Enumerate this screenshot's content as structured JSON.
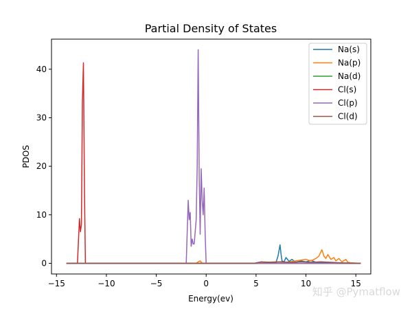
{
  "chart_data": {
    "type": "line",
    "title": "Partial Density of States",
    "xlabel": "Energy(ev)",
    "ylabel": "PDOS",
    "xlim": [
      -15.5,
      16.5
    ],
    "ylim": [
      -2.2,
      46.2
    ],
    "xticks": [
      -15,
      -10,
      -5,
      0,
      5,
      10,
      15
    ],
    "xtick_labels": [
      "−15",
      "−10",
      "−5",
      "0",
      "5",
      "10",
      "15"
    ],
    "yticks": [
      0,
      10,
      20,
      30,
      40
    ],
    "ytick_labels": [
      "0",
      "10",
      "20",
      "30",
      "40"
    ],
    "grid": false,
    "legend_position": "top-right",
    "series": [
      {
        "name": "Na(s)",
        "color": "#1f77b4",
        "x": [
          -14,
          5,
          7.0,
          7.2,
          7.4,
          7.5,
          7.6,
          7.8,
          8.0,
          8.3,
          8.6,
          9.0,
          9.5,
          10.0,
          10.5,
          11.0,
          12.0,
          13.0,
          15.5
        ],
        "y": [
          0,
          0,
          0.2,
          1.5,
          3.8,
          2.0,
          0.5,
          0.3,
          1.2,
          0.4,
          0.8,
          0.2,
          0.5,
          0.3,
          0.6,
          0.2,
          0.1,
          0,
          0
        ]
      },
      {
        "name": "Na(p)",
        "color": "#ff7f0e",
        "x": [
          -14,
          -1.0,
          -0.8,
          -0.6,
          -0.4,
          5,
          6,
          7,
          8,
          9,
          10,
          10.5,
          11.0,
          11.3,
          11.6,
          11.8,
          12.0,
          12.2,
          12.5,
          12.8,
          13.0,
          13.3,
          13.6,
          14.0,
          14.2,
          14.5,
          15.5
        ],
        "y": [
          0,
          0,
          0.3,
          0.5,
          0,
          0,
          0.2,
          0.3,
          0.2,
          0.5,
          0.8,
          0.5,
          1.0,
          1.5,
          2.8,
          1.5,
          1.0,
          1.8,
          0.8,
          1.2,
          0.5,
          1.0,
          0.3,
          0.8,
          0.2,
          0.1,
          0
        ]
      },
      {
        "name": "Na(d)",
        "color": "#2ca02c",
        "x": [
          -14,
          15.5
        ],
        "y": [
          0,
          0
        ]
      },
      {
        "name": "Cl(s)",
        "color": "#d62728",
        "x": [
          -14,
          -12.9,
          -12.7,
          -12.6,
          -12.5,
          -12.4,
          -12.3,
          -12.2,
          -12.1,
          -11.9,
          15.5
        ],
        "y": [
          0,
          0,
          9.2,
          6.5,
          8.0,
          33.0,
          41.3,
          15.0,
          0,
          0,
          0
        ]
      },
      {
        "name": "Cl(p)",
        "color": "#9467bd",
        "x": [
          -14,
          -2.0,
          -1.8,
          -1.7,
          -1.6,
          -1.5,
          -1.4,
          -1.3,
          -1.2,
          -1.0,
          -0.9,
          -0.8,
          -0.7,
          -0.6,
          -0.5,
          -0.4,
          -0.3,
          -0.2,
          -0.1,
          0.0,
          0.1,
          15.5
        ],
        "y": [
          0,
          0,
          13.0,
          9.0,
          10.5,
          3.5,
          5.0,
          4.0,
          4.0,
          9.0,
          20.0,
          44.0,
          18.0,
          6.0,
          19.5,
          13.0,
          10.0,
          15.5,
          6.0,
          0,
          0,
          0
        ]
      },
      {
        "name": "Cl(d)",
        "color": "#8c564b",
        "x": [
          -14,
          4.8,
          5.5,
          6.5,
          7.5,
          8.5,
          9.5,
          10.5,
          11.5,
          12.5,
          13.5,
          15.5
        ],
        "y": [
          0,
          0,
          0.3,
          0.2,
          0.3,
          0.2,
          0.3,
          0.2,
          0.3,
          0.2,
          0.1,
          0
        ]
      }
    ]
  },
  "watermark": "知乎 @Pymatflow"
}
